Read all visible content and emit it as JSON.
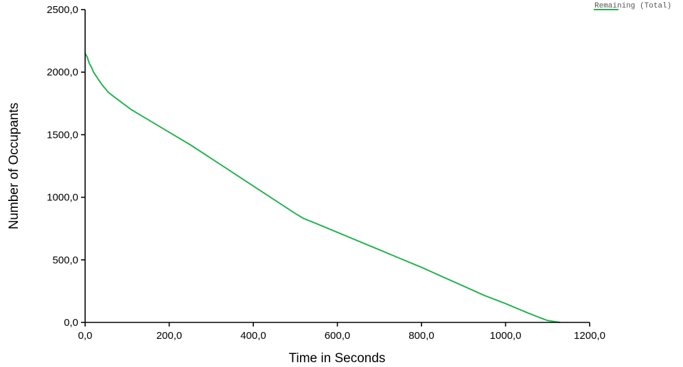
{
  "chart_data": {
    "type": "line",
    "xlabel": "Time in Seconds",
    "ylabel": "Number of Occupants",
    "xlim": [
      0,
      1200
    ],
    "ylim": [
      0,
      2500
    ],
    "x_ticks": [
      "0,0",
      "200,0",
      "400,0",
      "600,0",
      "800,0",
      "1000,0",
      "1200,0"
    ],
    "y_ticks": [
      "0,0",
      "500,0",
      "1000,0",
      "1500,0",
      "2000,0",
      "2500,0"
    ],
    "x_tick_values": [
      0,
      200,
      400,
      600,
      800,
      1000,
      1200
    ],
    "y_tick_values": [
      0,
      500,
      1000,
      1500,
      2000,
      2500
    ],
    "grid": false,
    "legend_position": "top-right",
    "series": [
      {
        "name": "Remaining (Total)",
        "color": "#22b24c",
        "x": [
          0,
          5,
          10,
          15,
          20,
          30,
          40,
          55,
          70,
          90,
          110,
          130,
          160,
          200,
          250,
          300,
          350,
          400,
          450,
          500,
          520,
          550,
          600,
          650,
          700,
          750,
          800,
          850,
          900,
          950,
          1000,
          1050,
          1080,
          1100,
          1120,
          1130
        ],
        "y": [
          2150,
          2120,
          2070,
          2040,
          2000,
          1950,
          1900,
          1840,
          1800,
          1750,
          1700,
          1660,
          1600,
          1520,
          1420,
          1310,
          1200,
          1090,
          980,
          870,
          830,
          790,
          720,
          650,
          580,
          510,
          440,
          365,
          290,
          215,
          150,
          80,
          40,
          15,
          5,
          0
        ]
      }
    ]
  }
}
